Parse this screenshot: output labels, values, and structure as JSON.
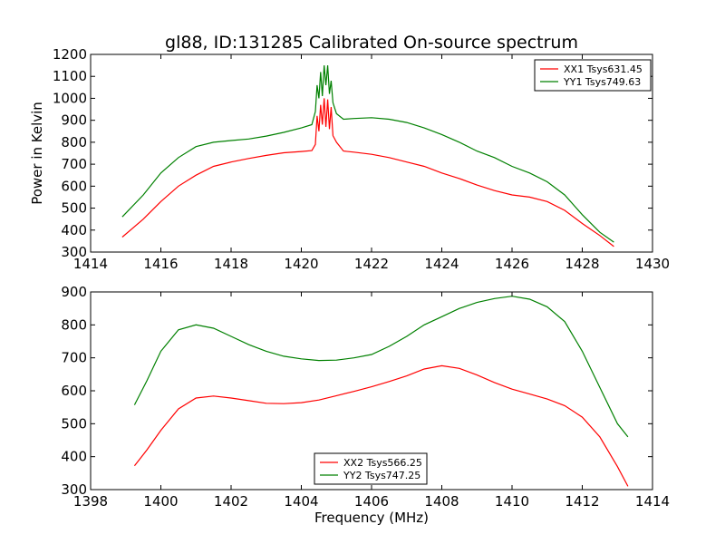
{
  "chart_data": {
    "title": "gl88, ID:131285 Calibrated On-source spectrum",
    "ylabel": "Power in Kelvin",
    "xlabel": "Frequency (MHz)",
    "panels": [
      {
        "type": "line",
        "xlim": [
          1414,
          1430
        ],
        "ylim": [
          300,
          1200
        ],
        "xticks": [
          1414,
          1416,
          1418,
          1420,
          1422,
          1424,
          1426,
          1428,
          1430
        ],
        "yticks": [
          300,
          400,
          500,
          600,
          700,
          800,
          900,
          1000,
          1100,
          1200
        ],
        "legend_position": "top-right",
        "series": [
          {
            "name": "XX1 Tsys631.45",
            "color": "#ff0000",
            "points": [
              [
                1414.9,
                368
              ],
              [
                1415.5,
                450
              ],
              [
                1416.0,
                530
              ],
              [
                1416.5,
                600
              ],
              [
                1417.0,
                650
              ],
              [
                1417.5,
                690
              ],
              [
                1418.0,
                710
              ],
              [
                1418.5,
                726
              ],
              [
                1419.0,
                740
              ],
              [
                1419.5,
                752
              ],
              [
                1420.0,
                758
              ],
              [
                1420.3,
                762
              ],
              [
                1420.4,
                790
              ],
              [
                1420.45,
                920
              ],
              [
                1420.5,
                850
              ],
              [
                1420.55,
                970
              ],
              [
                1420.6,
                880
              ],
              [
                1420.65,
                1000
              ],
              [
                1420.7,
                870
              ],
              [
                1420.75,
                995
              ],
              [
                1420.8,
                860
              ],
              [
                1420.85,
                960
              ],
              [
                1420.9,
                830
              ],
              [
                1421.0,
                800
              ],
              [
                1421.2,
                760
              ],
              [
                1421.5,
                755
              ],
              [
                1422.0,
                745
              ],
              [
                1422.5,
                730
              ],
              [
                1423.0,
                710
              ],
              [
                1423.5,
                690
              ],
              [
                1424.0,
                660
              ],
              [
                1424.5,
                635
              ],
              [
                1425.0,
                605
              ],
              [
                1425.5,
                580
              ],
              [
                1426.0,
                560
              ],
              [
                1426.5,
                550
              ],
              [
                1427.0,
                530
              ],
              [
                1427.5,
                490
              ],
              [
                1428.0,
                430
              ],
              [
                1428.5,
                375
              ],
              [
                1428.9,
                325
              ]
            ]
          },
          {
            "name": "YY1 Tsys749.63",
            "color": "#008000",
            "points": [
              [
                1414.9,
                460
              ],
              [
                1415.5,
                560
              ],
              [
                1416.0,
                660
              ],
              [
                1416.5,
                730
              ],
              [
                1417.0,
                780
              ],
              [
                1417.5,
                800
              ],
              [
                1418.0,
                808
              ],
              [
                1418.5,
                815
              ],
              [
                1419.0,
                828
              ],
              [
                1419.5,
                845
              ],
              [
                1420.0,
                865
              ],
              [
                1420.3,
                880
              ],
              [
                1420.4,
                940
              ],
              [
                1420.45,
                1060
              ],
              [
                1420.5,
                1000
              ],
              [
                1420.55,
                1120
              ],
              [
                1420.6,
                1010
              ],
              [
                1420.65,
                1150
              ],
              [
                1420.7,
                1060
              ],
              [
                1420.75,
                1150
              ],
              [
                1420.8,
                1020
              ],
              [
                1420.85,
                1080
              ],
              [
                1420.9,
                980
              ],
              [
                1421.0,
                930
              ],
              [
                1421.2,
                905
              ],
              [
                1421.5,
                908
              ],
              [
                1422.0,
                912
              ],
              [
                1422.5,
                905
              ],
              [
                1423.0,
                890
              ],
              [
                1423.5,
                865
              ],
              [
                1424.0,
                835
              ],
              [
                1424.5,
                800
              ],
              [
                1425.0,
                760
              ],
              [
                1425.5,
                730
              ],
              [
                1426.0,
                690
              ],
              [
                1426.5,
                660
              ],
              [
                1427.0,
                620
              ],
              [
                1427.5,
                560
              ],
              [
                1428.0,
                470
              ],
              [
                1428.5,
                390
              ],
              [
                1428.9,
                345
              ]
            ]
          }
        ]
      },
      {
        "type": "line",
        "xlim": [
          1398,
          1414
        ],
        "ylim": [
          300,
          900
        ],
        "xticks": [
          1398,
          1400,
          1402,
          1404,
          1406,
          1408,
          1410,
          1412,
          1414
        ],
        "yticks": [
          300,
          400,
          500,
          600,
          700,
          800,
          900
        ],
        "legend_position": "bottom-center",
        "series": [
          {
            "name": "XX2 Tsys566.25",
            "color": "#ff0000",
            "points": [
              [
                1399.25,
                372
              ],
              [
                1399.6,
                420
              ],
              [
                1400.0,
                480
              ],
              [
                1400.5,
                545
              ],
              [
                1401.0,
                578
              ],
              [
                1401.5,
                584
              ],
              [
                1402.0,
                578
              ],
              [
                1402.5,
                570
              ],
              [
                1403.0,
                562
              ],
              [
                1403.5,
                561
              ],
              [
                1404.0,
                564
              ],
              [
                1404.5,
                572
              ],
              [
                1405.0,
                585
              ],
              [
                1405.5,
                598
              ],
              [
                1406.0,
                612
              ],
              [
                1406.5,
                628
              ],
              [
                1407.0,
                645
              ],
              [
                1407.5,
                666
              ],
              [
                1408.0,
                676
              ],
              [
                1408.5,
                668
              ],
              [
                1409.0,
                648
              ],
              [
                1409.5,
                625
              ],
              [
                1410.0,
                605
              ],
              [
                1410.5,
                590
              ],
              [
                1411.0,
                575
              ],
              [
                1411.5,
                555
              ],
              [
                1412.0,
                520
              ],
              [
                1412.5,
                460
              ],
              [
                1413.0,
                370
              ],
              [
                1413.3,
                310
              ]
            ]
          },
          {
            "name": "YY2 Tsys747.25",
            "color": "#008000",
            "points": [
              [
                1399.25,
                557
              ],
              [
                1399.6,
                630
              ],
              [
                1400.0,
                720
              ],
              [
                1400.5,
                785
              ],
              [
                1401.0,
                800
              ],
              [
                1401.5,
                790
              ],
              [
                1402.0,
                765
              ],
              [
                1402.5,
                740
              ],
              [
                1403.0,
                720
              ],
              [
                1403.5,
                705
              ],
              [
                1404.0,
                697
              ],
              [
                1404.5,
                692
              ],
              [
                1405.0,
                693
              ],
              [
                1405.5,
                700
              ],
              [
                1406.0,
                710
              ],
              [
                1406.5,
                735
              ],
              [
                1407.0,
                765
              ],
              [
                1407.5,
                800
              ],
              [
                1408.0,
                825
              ],
              [
                1408.5,
                850
              ],
              [
                1409.0,
                868
              ],
              [
                1409.5,
                880
              ],
              [
                1410.0,
                887
              ],
              [
                1410.5,
                878
              ],
              [
                1411.0,
                855
              ],
              [
                1411.5,
                810
              ],
              [
                1412.0,
                720
              ],
              [
                1412.5,
                610
              ],
              [
                1413.0,
                500
              ],
              [
                1413.3,
                460
              ]
            ]
          }
        ]
      }
    ]
  }
}
